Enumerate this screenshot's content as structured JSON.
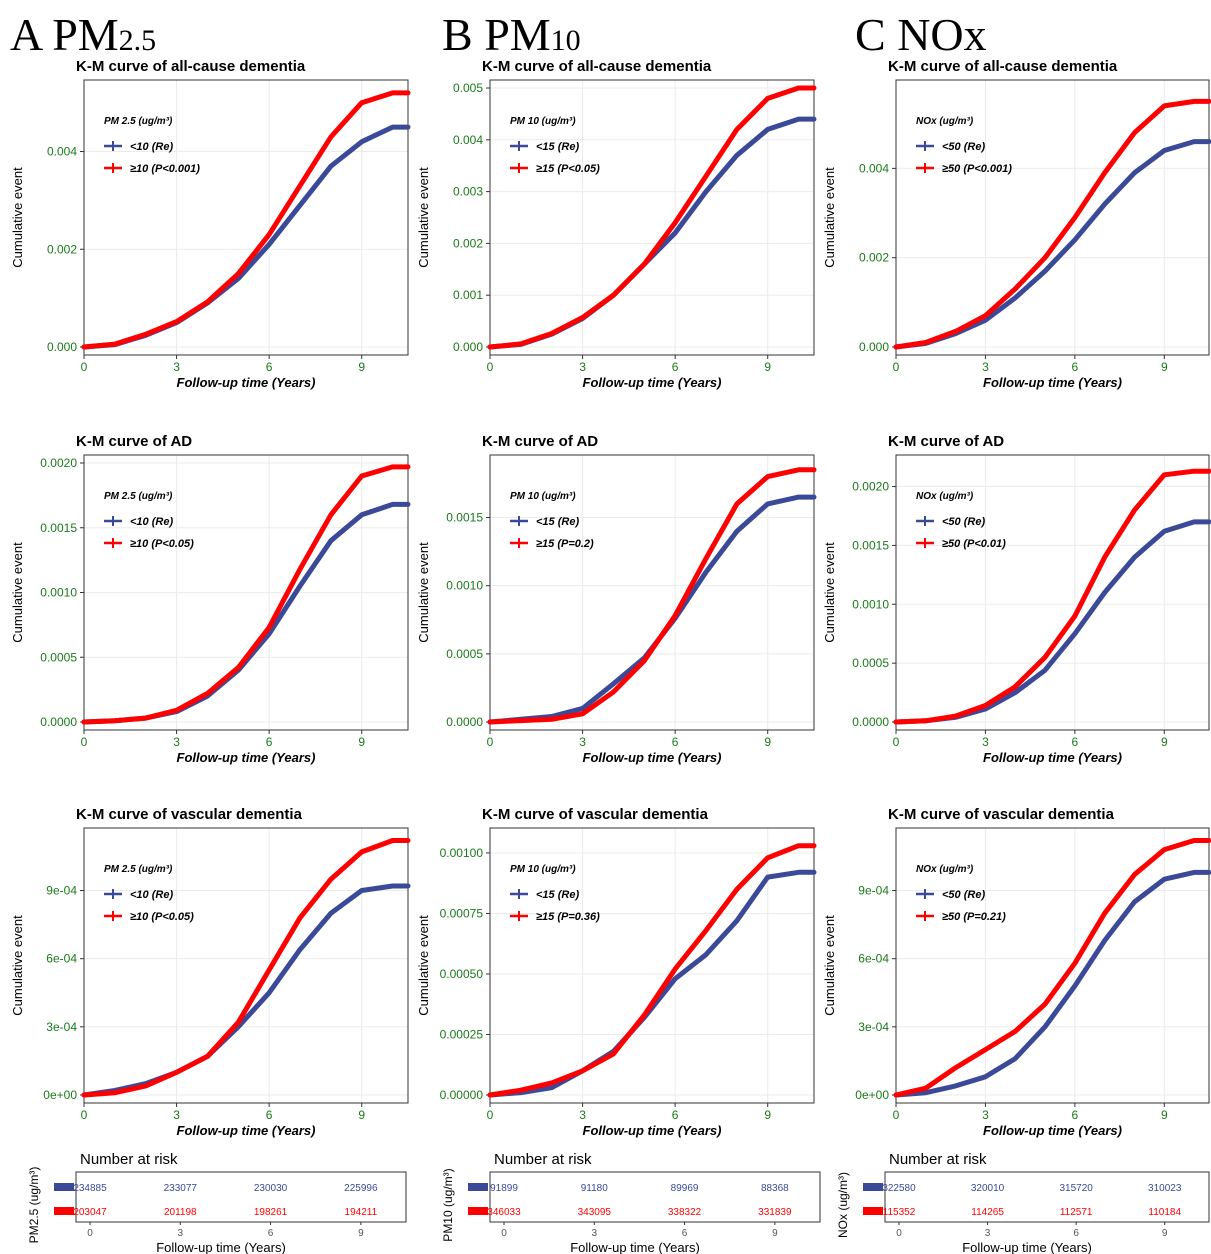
{
  "column_headers": [
    {
      "letter": "A",
      "pollutant": "PM",
      "subscript": "2.5"
    },
    {
      "letter": "B",
      "pollutant": "PM",
      "subscript": "10"
    },
    {
      "letter": "C",
      "pollutant": "NOx",
      "subscript": ""
    }
  ],
  "colors": {
    "reference": "#3b4a98",
    "exposed": "#ff0000",
    "tick": "#1a7a1a",
    "grid": "#ebebeb"
  },
  "chart_data": [
    {
      "type": "line",
      "title": "K-M curve of all-cause dementia",
      "xlabel": "Follow-up time (Years)",
      "ylabel": "Cumulative event",
      "legend_title": "PM 2.5  (ug/m³)",
      "xlim": [
        0,
        10.5
      ],
      "ylim": [
        0,
        0.0053
      ],
      "xticks": [
        0,
        3,
        6,
        9
      ],
      "yticks": [
        0,
        0.002,
        0.004
      ],
      "ytick_labels": [
        "0.000",
        "0.002",
        "0.004"
      ],
      "x": [
        0,
        1,
        2,
        3,
        4,
        5,
        6,
        7,
        8,
        9,
        10,
        10.5
      ],
      "series": [
        {
          "name": "<10 (Re)",
          "values": [
            0,
            5e-05,
            0.00024,
            0.0005,
            0.0009,
            0.0014,
            0.0021,
            0.0029,
            0.0037,
            0.0042,
            0.0045,
            0.0045
          ]
        },
        {
          "name": "≥10 (P<0.001)",
          "values": [
            0,
            6e-05,
            0.00026,
            0.00052,
            0.00092,
            0.0015,
            0.0023,
            0.0033,
            0.0043,
            0.005,
            0.0052,
            0.0052
          ]
        }
      ]
    },
    {
      "type": "line",
      "title": "K-M curve of all-cause dementia",
      "xlabel": "Follow-up time (Years)",
      "ylabel": "Cumulative event",
      "legend_title": "PM 10  (ug/m³)",
      "xlim": [
        0,
        10.5
      ],
      "ylim": [
        0,
        0.005
      ],
      "xticks": [
        0,
        3,
        6,
        9
      ],
      "yticks": [
        0,
        0.001,
        0.002,
        0.003,
        0.004,
        0.005
      ],
      "ytick_labels": [
        "0.000",
        "0.001",
        "0.002",
        "0.003",
        "0.004",
        "0.005"
      ],
      "x": [
        0,
        1,
        2,
        3,
        4,
        5,
        6,
        7,
        8,
        9,
        10,
        10.5
      ],
      "series": [
        {
          "name": "<15 (Re)",
          "values": [
            0,
            5e-05,
            0.00025,
            0.00055,
            0.001,
            0.0016,
            0.0022,
            0.003,
            0.0037,
            0.0042,
            0.0044,
            0.0044
          ]
        },
        {
          "name": "≥15 (P<0.05)",
          "values": [
            0,
            6e-05,
            0.00026,
            0.00057,
            0.001,
            0.0016,
            0.0024,
            0.0033,
            0.0042,
            0.0048,
            0.005,
            0.005
          ]
        }
      ]
    },
    {
      "type": "line",
      "title": "K-M curve of all-cause dementia",
      "xlabel": "Follow-up time (Years)",
      "ylabel": "Cumulative event",
      "legend_title": "NOx (ug/m³)",
      "xlim": [
        0,
        10.5
      ],
      "ylim": [
        0,
        0.0058
      ],
      "xticks": [
        0,
        3,
        6,
        9
      ],
      "yticks": [
        0,
        0.002,
        0.004
      ],
      "ytick_labels": [
        "0.000",
        "0.002",
        "0.004"
      ],
      "x": [
        0,
        1,
        2,
        3,
        4,
        5,
        6,
        7,
        8,
        9,
        10,
        10.5
      ],
      "series": [
        {
          "name": "<50 (Re)",
          "values": [
            0,
            8e-05,
            0.0003,
            0.0006,
            0.0011,
            0.0017,
            0.0024,
            0.0032,
            0.0039,
            0.0044,
            0.0046,
            0.0046
          ]
        },
        {
          "name": "≥50 (P<0.001)",
          "values": [
            0,
            0.0001,
            0.00035,
            0.0007,
            0.0013,
            0.002,
            0.0029,
            0.0039,
            0.0048,
            0.0054,
            0.0055,
            0.0055
          ]
        }
      ]
    },
    {
      "type": "line",
      "title": "K-M curve of AD",
      "xlabel": "Follow-up time (Years)",
      "ylabel": "Cumulative event",
      "legend_title": "PM 2.5  (ug/m³)",
      "xlim": [
        0,
        10.5
      ],
      "ylim": [
        0,
        0.002
      ],
      "xticks": [
        0,
        3,
        6,
        9
      ],
      "yticks": [
        0,
        0.0005,
        0.001,
        0.0015,
        0.002
      ],
      "ytick_labels": [
        "0.0000",
        "0.0005",
        "0.0010",
        "0.0015",
        "0.0020"
      ],
      "x": [
        0,
        1,
        2,
        3,
        4,
        5,
        6,
        7,
        8,
        9,
        10,
        10.5
      ],
      "series": [
        {
          "name": "<10 (Re)",
          "values": [
            0,
            1e-05,
            3e-05,
            8e-05,
            0.0002,
            0.0004,
            0.00068,
            0.00105,
            0.0014,
            0.0016,
            0.00168,
            0.00168
          ]
        },
        {
          "name": "≥10 (P<0.05)",
          "values": [
            0,
            1e-05,
            3e-05,
            9e-05,
            0.00022,
            0.00042,
            0.00073,
            0.00118,
            0.0016,
            0.0019,
            0.00197,
            0.00197
          ]
        }
      ]
    },
    {
      "type": "line",
      "title": "K-M curve of AD",
      "xlabel": "Follow-up time (Years)",
      "ylabel": "Cumulative event",
      "legend_title": "PM 10  (ug/m³)",
      "xlim": [
        0,
        10.5
      ],
      "ylim": [
        0,
        0.0019
      ],
      "xticks": [
        0,
        3,
        6,
        9
      ],
      "yticks": [
        0,
        0.0005,
        0.001,
        0.0015
      ],
      "ytick_labels": [
        "0.0000",
        "0.0005",
        "0.0010",
        "0.0015"
      ],
      "x": [
        0,
        1,
        2,
        3,
        4,
        5,
        6,
        7,
        8,
        9,
        10,
        10.5
      ],
      "series": [
        {
          "name": "<15 (Re)",
          "values": [
            0,
            2e-05,
            4e-05,
            0.0001,
            0.00028,
            0.00047,
            0.00076,
            0.0011,
            0.0014,
            0.0016,
            0.00165,
            0.00165
          ]
        },
        {
          "name": "≥15 (P=0.2)",
          "values": [
            0,
            1e-05,
            2e-05,
            6e-05,
            0.00022,
            0.00045,
            0.00078,
            0.0012,
            0.0016,
            0.0018,
            0.00185,
            0.00185
          ]
        }
      ]
    },
    {
      "type": "line",
      "title": "K-M curve of AD",
      "xlabel": "Follow-up time (Years)",
      "ylabel": "Cumulative event",
      "legend_title": "NOx (ug/m³)",
      "xlim": [
        0,
        10.5
      ],
      "ylim": [
        0,
        0.0022
      ],
      "xticks": [
        0,
        3,
        6,
        9
      ],
      "yticks": [
        0,
        0.0005,
        0.001,
        0.0015,
        0.002
      ],
      "ytick_labels": [
        "0.0000",
        "0.0005",
        "0.0010",
        "0.0015",
        "0.0020"
      ],
      "x": [
        0,
        1,
        2,
        3,
        4,
        5,
        6,
        7,
        8,
        9,
        10,
        10.5
      ],
      "series": [
        {
          "name": "<50 (Re)",
          "values": [
            0,
            1e-05,
            4e-05,
            0.00011,
            0.00025,
            0.00044,
            0.00075,
            0.0011,
            0.0014,
            0.00162,
            0.0017,
            0.0017
          ]
        },
        {
          "name": "≥50 (P<0.01)",
          "values": [
            0,
            1e-05,
            5e-05,
            0.00014,
            0.0003,
            0.00055,
            0.0009,
            0.0014,
            0.0018,
            0.0021,
            0.00213,
            0.00213
          ]
        }
      ]
    },
    {
      "type": "line",
      "title": "K-M curve of  vascular dementia",
      "xlabel": "Follow-up time (Years)",
      "ylabel": "Cumulative event",
      "legend_title": "PM 2.5  (ug/m³)",
      "xlim": [
        0,
        10.5
      ],
      "ylim": [
        0,
        0.00114
      ],
      "xticks": [
        0,
        3,
        6,
        9
      ],
      "yticks": [
        0,
        0.0003,
        0.0006,
        0.0009
      ],
      "ytick_labels": [
        "0e+00",
        "3e-04",
        "6e-04",
        "9e-04"
      ],
      "x": [
        0,
        1,
        2,
        3,
        4,
        5,
        6,
        7,
        8,
        9,
        10,
        10.5
      ],
      "series": [
        {
          "name": "<10 (Re)",
          "values": [
            0,
            2e-05,
            5e-05,
            0.0001,
            0.00017,
            0.0003,
            0.00045,
            0.00064,
            0.0008,
            0.0009,
            0.00092,
            0.00092
          ]
        },
        {
          "name": "≥10 (P<0.05)",
          "values": [
            0,
            1e-05,
            4e-05,
            0.0001,
            0.00017,
            0.00032,
            0.00055,
            0.00078,
            0.00095,
            0.00107,
            0.00112,
            0.00112
          ]
        }
      ]
    },
    {
      "type": "line",
      "title": "K-M curve of  vascular dementia",
      "xlabel": "Follow-up time (Years)",
      "ylabel": "Cumulative event",
      "legend_title": "PM 10  (ug/m³)",
      "xlim": [
        0,
        10.5
      ],
      "ylim": [
        0,
        0.00107
      ],
      "xticks": [
        0,
        3,
        6,
        9
      ],
      "yticks": [
        0,
        0.00025,
        0.0005,
        0.00075,
        0.001
      ],
      "ytick_labels": [
        "0.00000",
        "0.00025",
        "0.00050",
        "0.00075",
        "0.00100"
      ],
      "x": [
        0,
        1,
        2,
        3,
        4,
        5,
        6,
        7,
        8,
        9,
        10,
        10.5
      ],
      "series": [
        {
          "name": "<15 (Re)",
          "values": [
            0,
            1e-05,
            3e-05,
            0.0001,
            0.00018,
            0.00032,
            0.00048,
            0.00058,
            0.00072,
            0.0009,
            0.00092,
            0.00092
          ]
        },
        {
          "name": "≥15 (P=0.36)",
          "values": [
            0,
            2e-05,
            5e-05,
            0.0001,
            0.00017,
            0.00033,
            0.00052,
            0.00068,
            0.00085,
            0.00098,
            0.00103,
            0.00103
          ]
        }
      ]
    },
    {
      "type": "line",
      "title": "K-M curve of  vascular dementia",
      "xlabel": "Follow-up time (Years)",
      "ylabel": "Cumulative event",
      "legend_title": "NOx (ug/m³)",
      "xlim": [
        0,
        10.5
      ],
      "ylim": [
        0,
        0.00114
      ],
      "xticks": [
        0,
        3,
        6,
        9
      ],
      "yticks": [
        0,
        0.0003,
        0.0006,
        0.0009
      ],
      "ytick_labels": [
        "0e+00",
        "3e-04",
        "6e-04",
        "9e-04"
      ],
      "x": [
        0,
        1,
        2,
        3,
        4,
        5,
        6,
        7,
        8,
        9,
        10,
        10.5
      ],
      "series": [
        {
          "name": "<50 (Re)",
          "values": [
            0,
            1e-05,
            4e-05,
            8e-05,
            0.00016,
            0.0003,
            0.00048,
            0.00068,
            0.00085,
            0.00095,
            0.00098,
            0.00098
          ]
        },
        {
          "name": "≥50 (P=0.21)",
          "values": [
            0,
            3e-05,
            0.00012,
            0.0002,
            0.00028,
            0.0004,
            0.00058,
            0.0008,
            0.00097,
            0.00108,
            0.00112,
            0.00112
          ]
        }
      ]
    }
  ],
  "risk_tables": [
    {
      "title": "Number at risk",
      "ylabel": "PM2.5  (ug/m³)",
      "xlabel": "Follow-up time (Years)",
      "times": [
        0,
        3,
        6,
        9
      ],
      "rows": [
        {
          "values": [
            "234885",
            "233077",
            "230030",
            "225996"
          ]
        },
        {
          "values": [
            "203047",
            "201198",
            "198261",
            "194211"
          ]
        }
      ]
    },
    {
      "title": "Number at risk",
      "ylabel": "PM10  (ug/m³)",
      "xlabel": "Follow-up time (Years)",
      "times": [
        0,
        3,
        6,
        9
      ],
      "rows": [
        {
          "values": [
            "91899",
            "91180",
            "89969",
            "88368"
          ]
        },
        {
          "values": [
            "346033",
            "343095",
            "338322",
            "331839"
          ]
        }
      ]
    },
    {
      "title": "Number at risk",
      "ylabel": "NOx (ug/m³)",
      "xlabel": "Follow-up time (Years)",
      "times": [
        0,
        3,
        6,
        9
      ],
      "rows": [
        {
          "values": [
            "322580",
            "320010",
            "315720",
            "310023"
          ]
        },
        {
          "values": [
            "115352",
            "114265",
            "112571",
            "110184"
          ]
        }
      ]
    }
  ]
}
